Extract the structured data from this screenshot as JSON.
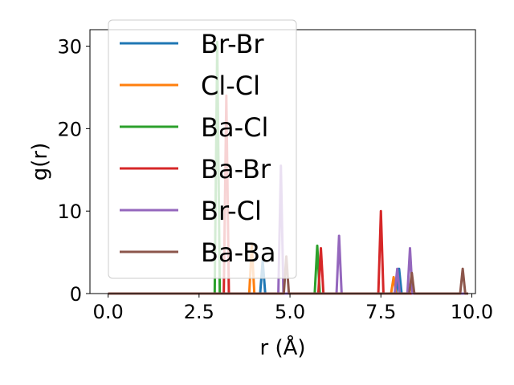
{
  "chart_data": {
    "type": "line",
    "title": "",
    "xlabel": "r (Å)",
    "ylabel": "g(r)",
    "xlim": [
      -0.5,
      10.1
    ],
    "ylim": [
      0,
      32
    ],
    "xticks": [
      0.0,
      2.5,
      5.0,
      7.5,
      10.0
    ],
    "xtick_labels": [
      "0.0",
      "2.5",
      "5.0",
      "7.5",
      "10.0"
    ],
    "yticks": [
      0,
      10,
      20,
      30
    ],
    "ytick_labels": [
      "0",
      "10",
      "20",
      "30"
    ],
    "grid": false,
    "legend_position": "top-left",
    "series": [
      {
        "name": "Br-Br",
        "color": "#1f77b4",
        "peaks": [
          {
            "x": 4.25,
            "y": 4.0
          },
          {
            "x": 8.0,
            "y": 3.0
          }
        ]
      },
      {
        "name": "Cl-Cl",
        "color": "#ff7f0e",
        "peaks": [
          {
            "x": 3.95,
            "y": 6.0
          },
          {
            "x": 7.85,
            "y": 2.0
          },
          {
            "x": 8.35,
            "y": 1.5
          }
        ]
      },
      {
        "name": "Ba-Cl",
        "color": "#2ca02c",
        "peaks": [
          {
            "x": 3.0,
            "y": 30.5
          },
          {
            "x": 5.75,
            "y": 5.8
          }
        ]
      },
      {
        "name": "Ba-Br",
        "color": "#d62728",
        "peaks": [
          {
            "x": 3.25,
            "y": 24.0
          },
          {
            "x": 5.85,
            "y": 5.5
          },
          {
            "x": 7.5,
            "y": 10.0
          }
        ]
      },
      {
        "name": "Br-Cl",
        "color": "#9467bd",
        "peaks": [
          {
            "x": 4.75,
            "y": 15.5
          },
          {
            "x": 6.35,
            "y": 7.0
          },
          {
            "x": 7.95,
            "y": 3.0
          },
          {
            "x": 8.3,
            "y": 5.5
          }
        ]
      },
      {
        "name": "Ba-Ba",
        "color": "#8c564b",
        "peaks": [
          {
            "x": 4.9,
            "y": 4.5
          },
          {
            "x": 8.35,
            "y": 2.5
          },
          {
            "x": 9.75,
            "y": 3.0
          }
        ]
      }
    ]
  }
}
